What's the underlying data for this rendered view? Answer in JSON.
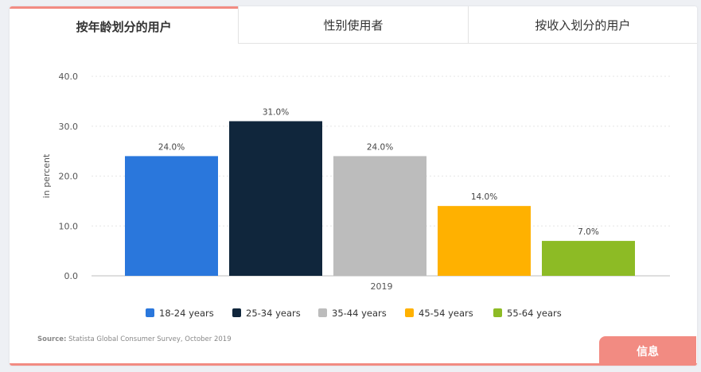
{
  "tabs": [
    {
      "label": "按年龄划分的用户",
      "active": true
    },
    {
      "label": "性别使用者",
      "active": false
    },
    {
      "label": "按收入划分的用户",
      "active": false
    }
  ],
  "source": {
    "label": "Source:",
    "text": "Statista Global Consumer Survey, October 2019"
  },
  "info_button": {
    "label": "信息"
  },
  "colors": {
    "accent": "#f28b82"
  },
  "chart_data": {
    "type": "bar",
    "categories": [
      "2019"
    ],
    "series": [
      {
        "name": "18-24 years",
        "values": [
          24.0
        ],
        "label": "24.0%",
        "color": "#2a77dc"
      },
      {
        "name": "25-34 years",
        "values": [
          31.0
        ],
        "label": "31.0%",
        "color": "#10263c"
      },
      {
        "name": "35-44 years",
        "values": [
          24.0
        ],
        "label": "24.0%",
        "color": "#bcbcbc"
      },
      {
        "name": "45-54 years",
        "values": [
          14.0
        ],
        "label": "14.0%",
        "color": "#ffb100"
      },
      {
        "name": "55-64 years",
        "values": [
          7.0
        ],
        "label": "7.0%",
        "color": "#8dbb25"
      }
    ],
    "title": "",
    "xlabel": "",
    "ylabel": "in percent",
    "ylim": [
      0,
      40
    ],
    "yticks": [
      "0.0",
      "10.0",
      "20.0",
      "30.0",
      "40.0"
    ],
    "grid": true,
    "legend_position": "bottom"
  }
}
